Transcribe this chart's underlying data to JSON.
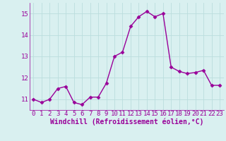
{
  "x": [
    0,
    1,
    2,
    3,
    4,
    5,
    6,
    7,
    8,
    9,
    10,
    11,
    12,
    13,
    14,
    15,
    16,
    17,
    18,
    19,
    20,
    21,
    22,
    23
  ],
  "y": [
    11.0,
    10.85,
    11.0,
    11.5,
    11.6,
    10.85,
    10.75,
    11.1,
    11.1,
    11.75,
    13.0,
    13.2,
    14.4,
    14.85,
    15.1,
    14.85,
    15.0,
    12.5,
    12.3,
    12.2,
    12.25,
    12.35,
    11.65,
    11.65
  ],
  "line_color": "#990099",
  "marker": "D",
  "marker_size": 2.5,
  "linewidth": 1.0,
  "bg_color": "#d9f0f0",
  "grid_color": "#bbdddd",
  "xlabel": "Windchill (Refroidissement éolien,°C)",
  "xlabel_fontsize": 7,
  "xlabel_color": "#990099",
  "tick_color": "#990099",
  "tick_fontsize": 6.5,
  "yticks": [
    11,
    12,
    13,
    14,
    15
  ],
  "xticks": [
    0,
    1,
    2,
    3,
    4,
    5,
    6,
    7,
    8,
    9,
    10,
    11,
    12,
    13,
    14,
    15,
    16,
    17,
    18,
    19,
    20,
    21,
    22,
    23
  ],
  "ylim": [
    10.5,
    15.5
  ],
  "xlim": [
    -0.5,
    23.5
  ]
}
